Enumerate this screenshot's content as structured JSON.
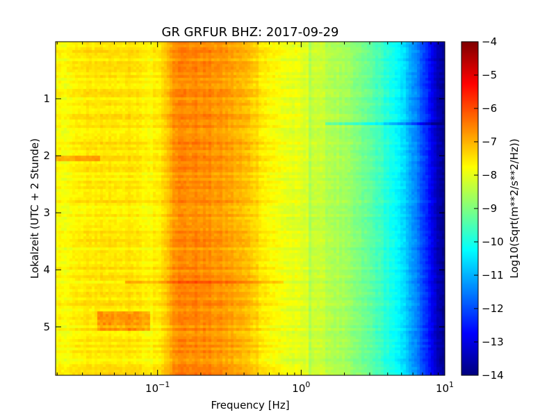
{
  "chart_data": {
    "type": "heatmap",
    "title": "GR GRFUR BHZ: 2017-09-29",
    "xlabel": "Frequency [Hz]",
    "ylabel": "Lokalzeit (UTC + 2 Stunde)",
    "x_scale": "log",
    "xlim": [
      0.0195,
      10
    ],
    "x_ticks": [
      {
        "value": 0.1,
        "base": "10",
        "exp": "−1"
      },
      {
        "value": 1,
        "base": "10",
        "exp": "0"
      },
      {
        "value": 10,
        "base": "10",
        "exp": "1"
      }
    ],
    "ylim": [
      0,
      5.85
    ],
    "y_inverted": true,
    "y_ticks": [
      {
        "value": 1,
        "label": "1"
      },
      {
        "value": 2,
        "label": "2"
      },
      {
        "value": 3,
        "label": "3"
      },
      {
        "value": 4,
        "label": "4"
      },
      {
        "value": 5,
        "label": "5"
      }
    ],
    "colorbar": {
      "label": "Log10(Sqrt(m**2/s**2/Hz))",
      "colormap": "jet",
      "range": [
        -14,
        -4
      ],
      "ticks": [
        {
          "value": -4,
          "label": "−4"
        },
        {
          "value": -5,
          "label": "−5"
        },
        {
          "value": -6,
          "label": "−6"
        },
        {
          "value": -7,
          "label": "−7"
        },
        {
          "value": -8,
          "label": "−8"
        },
        {
          "value": -9,
          "label": "−9"
        },
        {
          "value": -10,
          "label": "−10"
        },
        {
          "value": -11,
          "label": "−11"
        },
        {
          "value": -12,
          "label": "−12"
        },
        {
          "value": -13,
          "label": "−13"
        },
        {
          "value": -14,
          "label": "−14"
        }
      ]
    },
    "frequency_profile": [
      {
        "f": 0.0195,
        "v": -7.8
      },
      {
        "f": 0.038,
        "v": -7.5
      },
      {
        "f": 0.06,
        "v": -7.5
      },
      {
        "f": 0.09,
        "v": -7.7
      },
      {
        "f": 0.11,
        "v": -7.4
      },
      {
        "f": 0.13,
        "v": -6.6
      },
      {
        "f": 0.2,
        "v": -6.6
      },
      {
        "f": 0.3,
        "v": -6.8
      },
      {
        "f": 0.45,
        "v": -7.2
      },
      {
        "f": 0.6,
        "v": -7.7
      },
      {
        "f": 0.8,
        "v": -7.95
      },
      {
        "f": 1.2,
        "v": -8.2
      },
      {
        "f": 2.0,
        "v": -8.7
      },
      {
        "f": 3.0,
        "v": -9.3
      },
      {
        "f": 4.0,
        "v": -9.9
      },
      {
        "f": 5.5,
        "v": -10.8
      },
      {
        "f": 7.0,
        "v": -12.0
      },
      {
        "f": 8.5,
        "v": -13.2
      },
      {
        "f": 10.0,
        "v": -14.0
      }
    ],
    "features": [
      {
        "kind": "time-band",
        "t": 4.22,
        "fmin": 0.06,
        "fmax": 0.75,
        "dv": 0.8
      },
      {
        "kind": "time-band",
        "t": 1.43,
        "fmin": 1.5,
        "fmax": 10,
        "dv": -0.8
      },
      {
        "kind": "time-band",
        "t": 2.05,
        "fmin": 0.0195,
        "fmax": 0.04,
        "dv": 0.6
      },
      {
        "kind": "region",
        "tmin": 4.75,
        "tmax": 5.05,
        "fmin": 0.038,
        "fmax": 0.09,
        "dv": 0.9
      },
      {
        "kind": "freq-line",
        "f": 1.15,
        "dv": -0.35
      }
    ]
  }
}
